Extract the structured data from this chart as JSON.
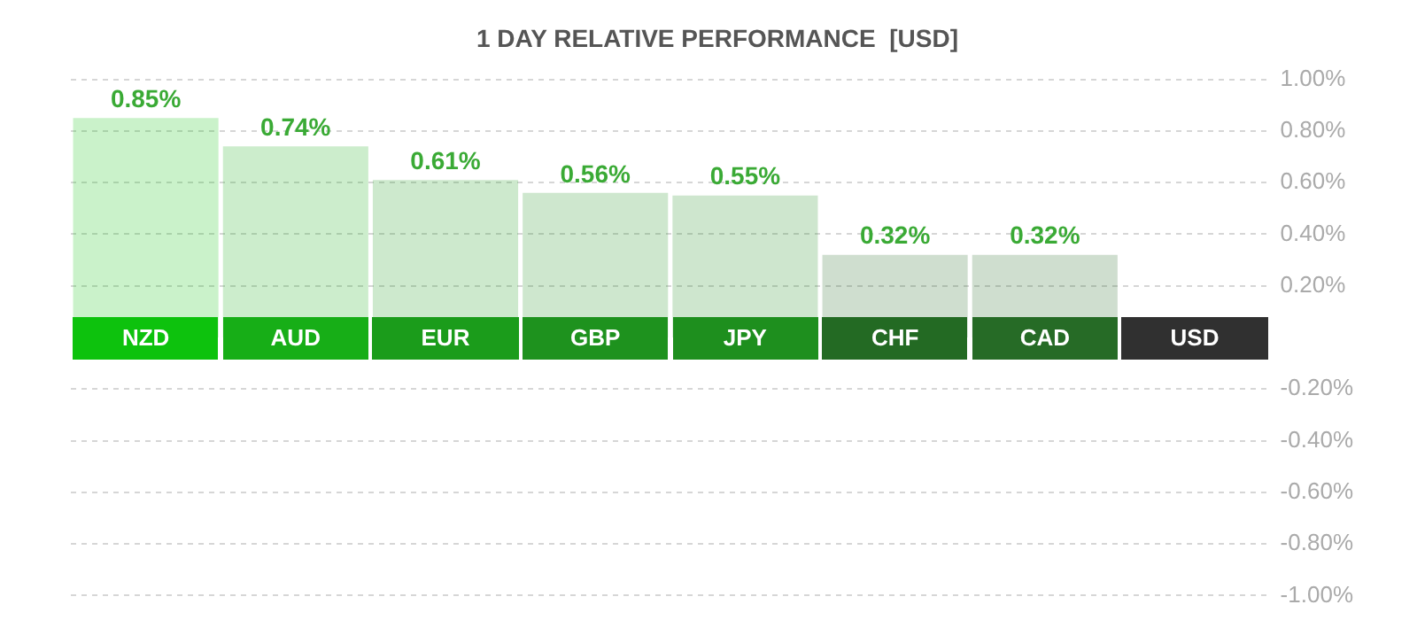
{
  "chart_data": {
    "type": "bar",
    "title": "1 DAY RELATIVE PERFORMANCE  [USD]",
    "categories": [
      "NZD",
      "AUD",
      "EUR",
      "GBP",
      "JPY",
      "CHF",
      "CAD",
      "USD"
    ],
    "values": [
      0.85,
      0.74,
      0.61,
      0.56,
      0.55,
      0.32,
      0.32,
      0
    ],
    "value_labels": [
      "0.85%",
      "0.74%",
      "0.61%",
      "0.56%",
      "0.55%",
      "0.32%",
      "0.32%",
      null
    ],
    "colors": [
      "#0dc20d",
      "#17ae17",
      "#1b9c1b",
      "#1e921e",
      "#1e8f1e",
      "#236a23",
      "#266b26",
      "#303030"
    ],
    "ylim": [
      -1,
      1
    ],
    "yticks": [
      {
        "value": 1,
        "label": "1.00%"
      },
      {
        "value": 0.8,
        "label": "0.80%"
      },
      {
        "value": 0.6,
        "label": "0.60%"
      },
      {
        "value": 0.4,
        "label": "0.40%"
      },
      {
        "value": 0.2,
        "label": "0.20%"
      },
      {
        "value": -0.2,
        "label": "-0.20%"
      },
      {
        "value": -0.4,
        "label": "-0.40%"
      },
      {
        "value": -0.6,
        "label": "-0.60%"
      },
      {
        "value": -0.8,
        "label": "-0.80%"
      },
      {
        "value": -1,
        "label": "-1.00%"
      }
    ],
    "grid": "y"
  }
}
